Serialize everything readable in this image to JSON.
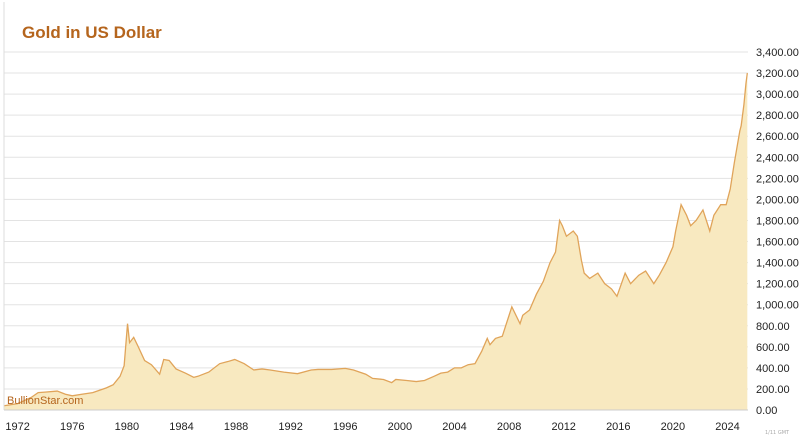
{
  "chart_data": {
    "type": "area",
    "title": "Gold in US Dollar",
    "watermark": "BullionStar.com",
    "corner_note": "1/11 GMT",
    "xlabel": "",
    "ylabel": "",
    "xlim": [
      1971.0,
      2025.5
    ],
    "ylim": [
      0,
      3400
    ],
    "grid": true,
    "legend": "none",
    "y_ticks": [
      "0.00",
      "200.00",
      "400.00",
      "600.00",
      "800.00",
      "1,000.00",
      "1,200.00",
      "1,400.00",
      "1,600.00",
      "1,800.00",
      "2,000.00",
      "2,200.00",
      "2,400.00",
      "2,600.00",
      "2,800.00",
      "3,000.00",
      "3,200.00",
      "3,400.00"
    ],
    "y_tick_values": [
      0,
      200,
      400,
      600,
      800,
      1000,
      1200,
      1400,
      1600,
      1800,
      2000,
      2200,
      2400,
      2600,
      2800,
      3000,
      3200,
      3400
    ],
    "x_ticks": [
      "1972",
      "1976",
      "1980",
      "1984",
      "1988",
      "1992",
      "1996",
      "2000",
      "2004",
      "2008",
      "2012",
      "2016",
      "2020",
      "2024"
    ],
    "x_tick_values": [
      1972,
      1976,
      1980,
      1984,
      1988,
      1992,
      1996,
      2000,
      2004,
      2008,
      2012,
      2016,
      2020,
      2024
    ],
    "colors": {
      "line": "#e0a45a",
      "fill": "#f8e9c0",
      "title": "#b5651d",
      "grid": "#e3e3e3"
    },
    "series": [
      {
        "x": [
          1971.0,
          1972.0,
          1973.0,
          1973.5,
          1974.0,
          1974.9,
          1975.5,
          1976.0,
          1976.7,
          1977.5,
          1978.5,
          1979.0,
          1979.5,
          1979.8,
          1980.05,
          1980.2,
          1980.5,
          1980.8,
          1981.3,
          1981.8,
          1982.4,
          1982.7,
          1983.1,
          1983.6,
          1984.3,
          1984.9,
          1985.2,
          1986.0,
          1986.8,
          1987.4,
          1987.9,
          1988.6,
          1989.3,
          1989.9,
          1990.5,
          1991.5,
          1992.5,
          1993.5,
          1994.0,
          1995.0,
          1996.0,
          1996.6,
          1997.5,
          1998.0,
          1998.8,
          1999.4,
          1999.7,
          2000.5,
          2001.2,
          2001.8,
          2002.5,
          2003.0,
          2003.5,
          2004.0,
          2004.5,
          2005.0,
          2005.5,
          2006.0,
          2006.4,
          2006.6,
          2007.0,
          2007.5,
          2008.0,
          2008.2,
          2008.8,
          2009.0,
          2009.5,
          2010.0,
          2010.5,
          2011.0,
          2011.4,
          2011.7,
          2011.9,
          2012.2,
          2012.7,
          2013.0,
          2013.3,
          2013.5,
          2013.9,
          2014.5,
          2015.0,
          2015.5,
          2015.9,
          2016.5,
          2016.9,
          2017.5,
          2018.0,
          2018.6,
          2019.0,
          2019.5,
          2020.0,
          2020.2,
          2020.6,
          2021.0,
          2021.3,
          2021.7,
          2022.2,
          2022.7,
          2023.0,
          2023.5,
          2023.9,
          2024.2,
          2024.5,
          2024.9,
          2025.0,
          2025.2,
          2025.35,
          2025.45
        ],
        "y": [
          40,
          60,
          120,
          165,
          170,
          180,
          150,
          135,
          150,
          165,
          210,
          240,
          320,
          420,
          820,
          640,
          690,
          610,
          470,
          430,
          340,
          480,
          470,
          390,
          350,
          310,
          320,
          360,
          440,
          460,
          480,
          440,
          380,
          390,
          380,
          360,
          345,
          380,
          385,
          385,
          395,
          380,
          340,
          300,
          290,
          260,
          290,
          280,
          270,
          280,
          320,
          350,
          360,
          400,
          400,
          430,
          440,
          560,
          680,
          620,
          680,
          700,
          900,
          980,
          820,
          900,
          950,
          1100,
          1220,
          1400,
          1500,
          1800,
          1750,
          1650,
          1700,
          1650,
          1420,
          1300,
          1250,
          1300,
          1200,
          1150,
          1080,
          1300,
          1200,
          1280,
          1320,
          1200,
          1280,
          1400,
          1550,
          1700,
          1950,
          1850,
          1750,
          1800,
          1900,
          1700,
          1850,
          1950,
          1950,
          2100,
          2350,
          2650,
          2700,
          2900,
          3100,
          3200
        ]
      }
    ]
  }
}
